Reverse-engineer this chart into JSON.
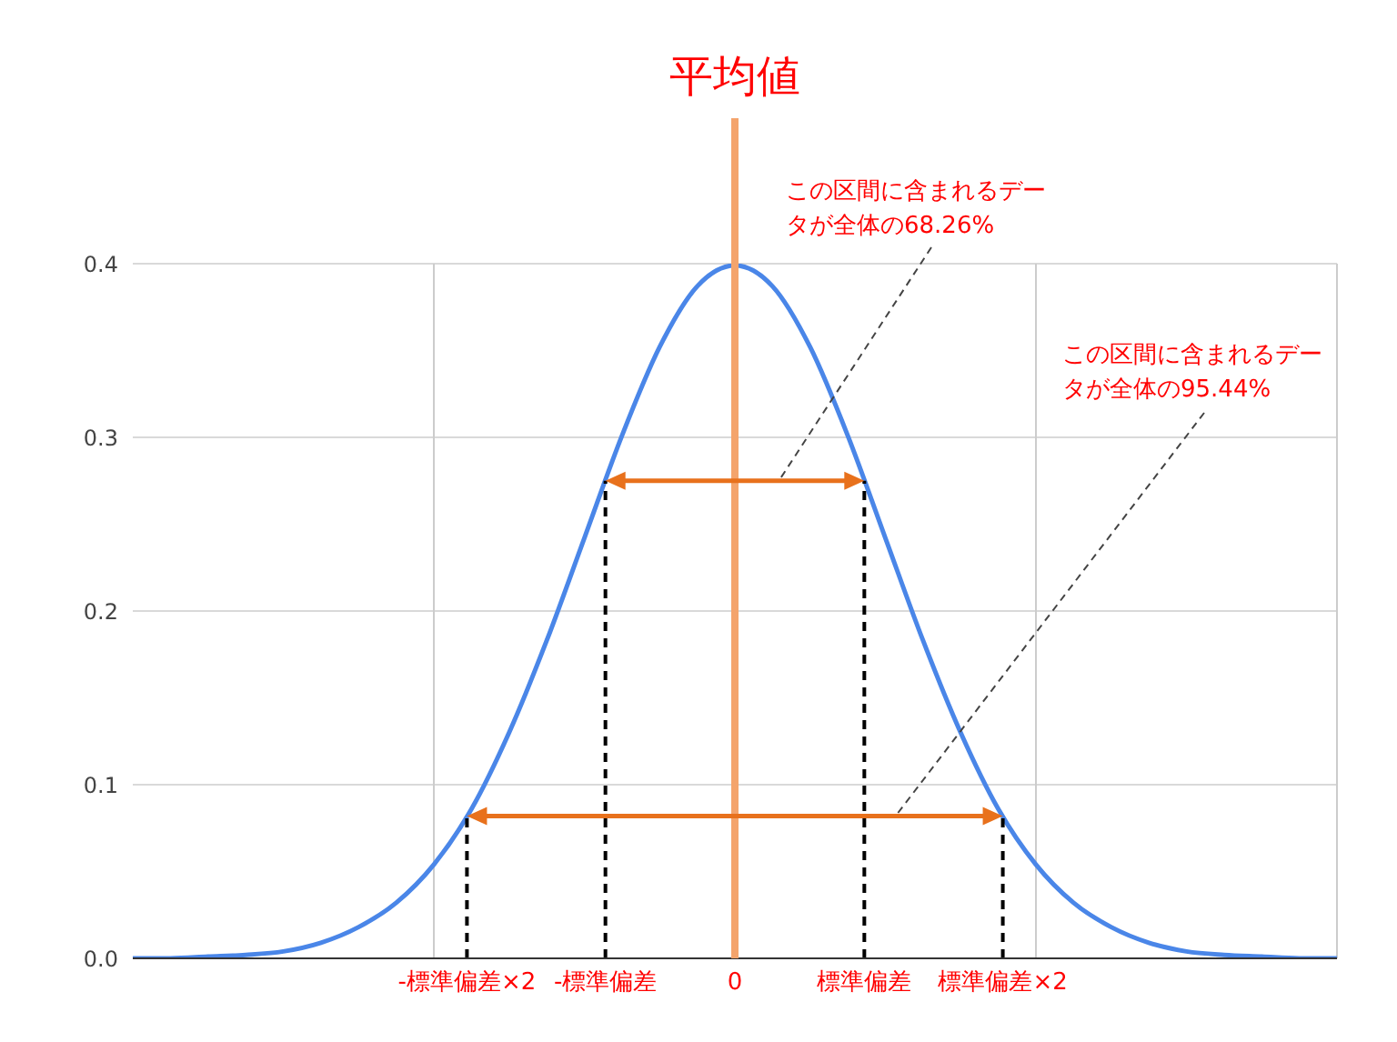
{
  "chart_data": {
    "type": "line",
    "xlim": [
      -4,
      4
    ],
    "xticks": [
      {
        "value": -1.78,
        "label": "-標準偏差×2"
      },
      {
        "value": -0.86,
        "label": "-標準偏差"
      },
      0,
      {
        "value": 0.86,
        "label": "標準偏差"
      },
      {
        "value": 1.78,
        "label": "標準偏差×2"
      }
    ],
    "ylim": [
      0,
      0.4
    ],
    "yticks": [
      {
        "value": 0,
        "label": "0.0"
      },
      0.1,
      0.2,
      0.3,
      0.4
    ],
    "grid": "y",
    "line_style": "solid",
    "series": [
      {
        "color": "#4a86e8",
        "marker": "none",
        "x": [
          -4,
          -3.75,
          -3.5,
          -3.25,
          -3,
          -2.75,
          -2.5,
          -2.25,
          -2,
          -1.75,
          -1.5,
          -1.25,
          -1,
          -0.75,
          -0.5,
          -0.25,
          0,
          0.25,
          0.5,
          0.75,
          1,
          1.25,
          1.5,
          1.75,
          2,
          2.25,
          2.5,
          2.75,
          3,
          3.25,
          3.5,
          3.75,
          4
        ],
        "values": [
          0,
          0,
          0.001,
          0.002,
          0.004,
          0.009,
          0.018,
          0.032,
          0.054,
          0.086,
          0.13,
          0.183,
          0.242,
          0.301,
          0.352,
          0.387,
          0.399,
          0.387,
          0.352,
          0.301,
          0.242,
          0.183,
          0.13,
          0.086,
          0.054,
          0.032,
          0.018,
          0.009,
          0.004,
          0.002,
          0.001,
          0,
          0
        ]
      },
      {
        "color": "#000000",
        "marker": "none",
        "line_style": "dashed",
        "x": [
          -1.78,
          -1.78
        ],
        "values": [
          0,
          0.082
        ]
      },
      {
        "color": "#000000",
        "marker": "none",
        "line_style": "dashed",
        "x": [
          -0.86,
          -0.86
        ],
        "values": [
          0,
          0.275
        ]
      },
      {
        "color": "#000000",
        "marker": "none",
        "line_style": "dashed",
        "x": [
          0.86,
          0.86
        ],
        "values": [
          0,
          0.275
        ]
      },
      {
        "color": "#000000",
        "marker": "none",
        "line_style": "dashed",
        "x": [
          1.78,
          1.78
        ],
        "values": [
          0,
          0.082
        ]
      }
    ],
    "ref_lines": [
      {
        "axis": "x",
        "value": -2,
        "color": "#cccccc"
      },
      {
        "axis": "x",
        "value": 2,
        "color": "#cccccc"
      },
      {
        "axis": "x",
        "value": 4,
        "color": "#cccccc"
      },
      {
        "axis": "x",
        "value": 0,
        "label": "平均値",
        "color": "#f4a46c"
      }
    ],
    "annotations": [
      "この区間に含まれるデータが全体の68.26%",
      "この区間に含まれるデータが全体の95.44%"
    ]
  }
}
